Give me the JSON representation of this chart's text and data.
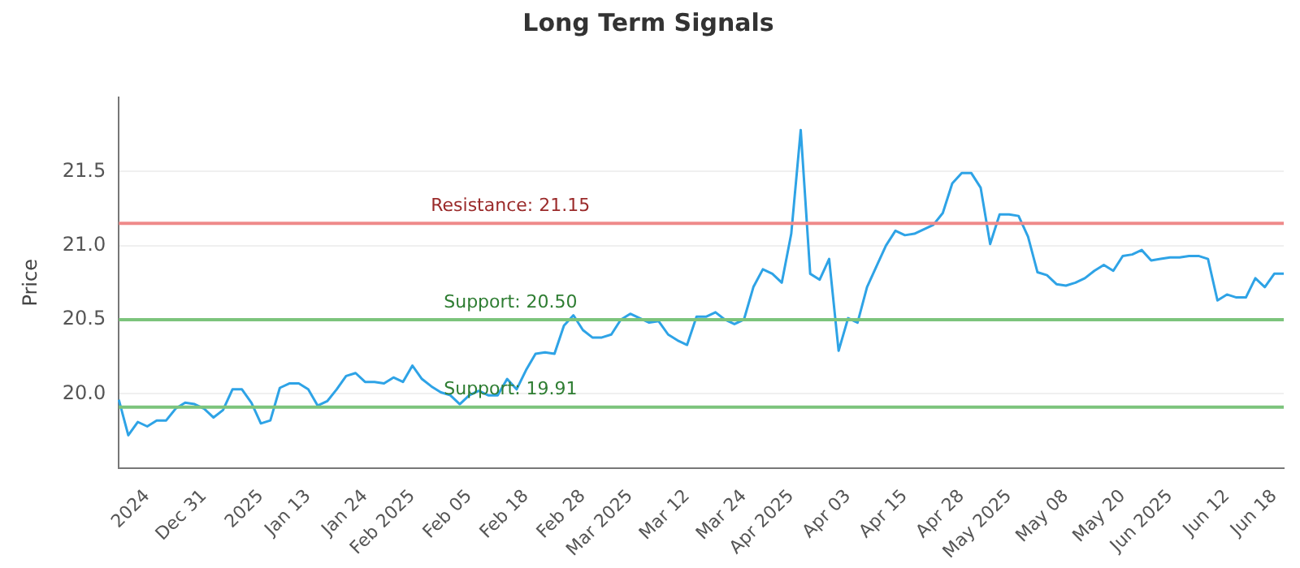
{
  "chart_data": {
    "type": "line",
    "title": "Long Term Signals",
    "ylabel": "Price",
    "categories": [
      null,
      null,
      null,
      "2024",
      null,
      null,
      null,
      null,
      null,
      "Dec 31",
      null,
      null,
      null,
      null,
      null,
      "2025",
      null,
      null,
      null,
      null,
      "Jan 13",
      null,
      null,
      null,
      null,
      null,
      "Jan 24",
      null,
      null,
      null,
      null,
      "Feb 2025",
      null,
      null,
      null,
      null,
      null,
      "Feb 05",
      null,
      null,
      null,
      null,
      null,
      "Feb 18",
      null,
      null,
      null,
      null,
      null,
      "Feb 28",
      null,
      null,
      null,
      null,
      "Mar 2025",
      null,
      null,
      null,
      null,
      null,
      "Mar 12",
      null,
      null,
      null,
      null,
      null,
      "Mar 24",
      null,
      null,
      null,
      null,
      "Apr 2025",
      null,
      null,
      null,
      null,
      null,
      "Apr 03",
      null,
      null,
      null,
      null,
      null,
      "Apr 15",
      null,
      null,
      null,
      null,
      null,
      "Apr 28",
      null,
      null,
      null,
      null,
      "May 2025",
      null,
      null,
      null,
      null,
      null,
      "May 08",
      null,
      null,
      null,
      null,
      null,
      "May 20",
      null,
      null,
      null,
      null,
      "Jun 2025",
      null,
      null,
      null,
      null,
      null,
      "Jun 12",
      null,
      null,
      null,
      null,
      "Jun 18",
      null
    ],
    "series": [
      {
        "color": "#2ea3e6",
        "values": [
          19.96,
          19.72,
          19.81,
          19.78,
          19.82,
          19.82,
          19.9,
          19.94,
          19.93,
          19.9,
          19.84,
          19.89,
          20.03,
          20.03,
          19.94,
          19.8,
          19.82,
          20.04,
          20.07,
          20.07,
          20.03,
          19.92,
          19.95,
          20.03,
          20.12,
          20.14,
          20.08,
          20.08,
          20.07,
          20.11,
          20.08,
          20.19,
          20.1,
          20.05,
          20.01,
          19.99,
          19.93,
          19.99,
          20.02,
          19.99,
          19.99,
          20.1,
          20.03,
          20.16,
          20.27,
          20.28,
          20.27,
          20.46,
          20.53,
          20.43,
          20.38,
          20.38,
          20.4,
          20.5,
          20.54,
          20.51,
          20.48,
          20.49,
          20.4,
          20.36,
          20.33,
          20.52,
          20.52,
          20.55,
          20.5,
          20.47,
          20.5,
          20.72,
          20.84,
          20.81,
          20.75,
          21.08,
          21.78,
          20.81,
          20.77,
          20.91,
          20.29,
          20.51,
          20.48,
          20.72,
          20.86,
          21.0,
          21.1,
          21.07,
          21.08,
          21.11,
          21.14,
          21.22,
          21.42,
          21.49,
          21.49,
          21.39,
          21.01,
          21.21,
          21.21,
          21.2,
          21.06,
          20.82,
          20.8,
          20.74,
          20.73,
          20.75,
          20.78,
          20.83,
          20.87,
          20.83,
          20.93,
          20.94,
          20.97,
          20.9,
          20.91,
          20.92,
          20.92,
          20.93,
          20.93,
          20.91,
          20.63,
          20.67,
          20.65,
          20.65,
          20.78,
          20.72,
          20.81,
          20.81
        ]
      }
    ],
    "ylim": [
      19.5,
      22.0
    ],
    "yticks": [
      {
        "value": 20,
        "label": "20.0"
      },
      20.5,
      {
        "value": 21,
        "label": "21.0"
      },
      21.5
    ],
    "grid": "y",
    "legend": false,
    "marker": "none",
    "line_style": "solid",
    "ref_lines": [
      {
        "axis": "y",
        "value": 21.15,
        "label": "Resistance: 21.15",
        "color": "#ef8a8a"
      },
      {
        "axis": "y",
        "value": 20.5,
        "label": "Support: 20.50",
        "color": "#7cc47c"
      },
      {
        "axis": "y",
        "value": 19.91,
        "label": "Support: 19.91",
        "color": "#7cc47c"
      }
    ]
  }
}
